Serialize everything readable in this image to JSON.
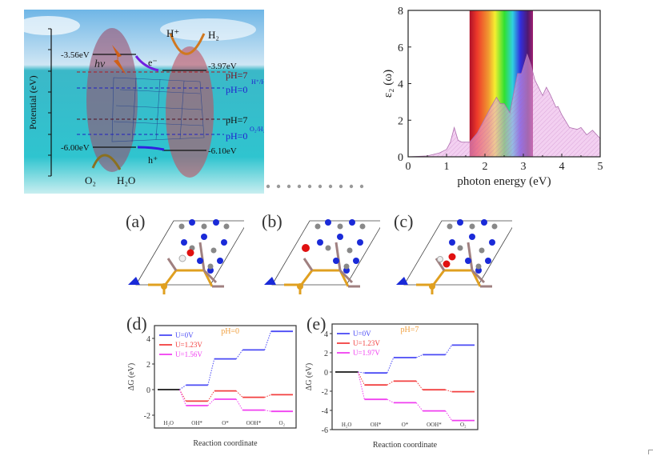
{
  "scheme": {
    "axis_label": "Potential (eV)",
    "levels": {
      "cbm_left": "-3.56eV",
      "cbm_right": "-3.97eV",
      "vbm_left": "-6.00eV",
      "vbm_right": "-6.10eV"
    },
    "ph_labels": {
      "h_ph7": "pH=7",
      "h_ph0": "pH=0",
      "h_couple": "H⁺/H₂",
      "o_ph7": "pH=7",
      "o_ph0": "pH=0",
      "o_couple": "O₂/H₂O"
    },
    "species": {
      "hplus": "H⁺",
      "h2": "H₂",
      "electron": "e⁻",
      "hole": "h⁺",
      "photon": "hν",
      "o2": "O₂",
      "h2o": "H₂O"
    }
  },
  "chart_data": [
    {
      "id": "absorption",
      "type": "area",
      "xlabel": "photon energy (eV)",
      "ylabel": "ε₂ (ω)",
      "xlim": [
        0,
        5
      ],
      "ylim": [
        0,
        8
      ],
      "xticks": [
        "0",
        "1",
        "2",
        "3",
        "4",
        "5"
      ],
      "yticks": [
        "0",
        "2",
        "4",
        "6",
        "8"
      ],
      "visible_band": [
        1.6,
        3.25
      ],
      "fill_color": "#e9a9e6",
      "x": [
        0,
        0.5,
        0.8,
        1.0,
        1.1,
        1.2,
        1.3,
        1.4,
        1.6,
        1.8,
        2.0,
        2.15,
        2.3,
        2.4,
        2.5,
        2.65,
        2.75,
        2.85,
        2.95,
        3.1,
        3.2,
        3.3,
        3.5,
        3.6,
        3.7,
        3.85,
        3.9,
        4.0,
        4.2,
        4.4,
        4.5,
        4.65,
        4.8,
        5.0
      ],
      "y": [
        0,
        0.05,
        0.2,
        0.4,
        0.8,
        1.6,
        0.9,
        0.8,
        0.8,
        1.3,
        2.1,
        2.7,
        3.25,
        2.9,
        2.9,
        2.4,
        3.5,
        4.55,
        4.55,
        5.6,
        5.0,
        4.2,
        3.35,
        3.8,
        3.4,
        2.7,
        2.75,
        2.3,
        1.6,
        1.5,
        1.6,
        1.2,
        1.45,
        1.0
      ]
    },
    {
      "id": "d",
      "panel_label": "(d)",
      "type": "line",
      "annotation": "pH=0",
      "xlabel": "Reaction coordinate",
      "ylabel": "ΔG (eV)",
      "categories": [
        "H₂O",
        "OH*",
        "O*",
        "OOH*",
        "O₂"
      ],
      "ylim": [
        -3,
        5
      ],
      "yticks": [
        "-2",
        "0",
        "2",
        "4"
      ],
      "series": [
        {
          "name": "U=0V",
          "color": "#4a4af5",
          "values": [
            0,
            0.35,
            2.4,
            3.1,
            4.55
          ]
        },
        {
          "name": "U=1.23V",
          "color": "#f24040",
          "values": [
            0,
            -0.9,
            -0.1,
            -0.6,
            -0.4
          ]
        },
        {
          "name": "U=1.56V",
          "color": "#f040f0",
          "values": [
            0,
            -1.25,
            -0.75,
            -1.6,
            -1.7
          ]
        }
      ]
    },
    {
      "id": "e",
      "panel_label": "(e)",
      "type": "line",
      "annotation": "pH=7",
      "xlabel": "Reaction coordinate",
      "ylabel": "ΔG (eV)",
      "categories": [
        "H₂O",
        "OH*",
        "O*",
        "OOH*",
        "O₂"
      ],
      "ylim": [
        -6,
        5
      ],
      "yticks": [
        "-6",
        "-4",
        "-2",
        "0",
        "2",
        "4"
      ],
      "series": [
        {
          "name": "U=0V",
          "color": "#4a4af5",
          "values": [
            0,
            -0.1,
            1.5,
            1.8,
            2.8
          ]
        },
        {
          "name": "U=1.23V",
          "color": "#f24040",
          "values": [
            0,
            -1.35,
            -0.95,
            -1.85,
            -2.05
          ]
        },
        {
          "name": "U=1.97V",
          "color": "#f040f0",
          "values": [
            0,
            -2.85,
            -3.2,
            -4.05,
            -5.05
          ]
        }
      ]
    }
  ],
  "structures": [
    {
      "label": "(a)"
    },
    {
      "label": "(b)"
    },
    {
      "label": "(c)"
    }
  ]
}
